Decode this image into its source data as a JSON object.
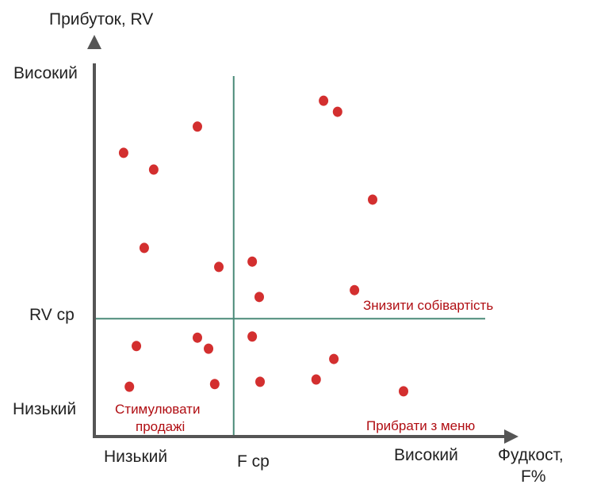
{
  "chart_data": {
    "type": "scatter",
    "title": "",
    "ylabel": "Прибуток, RV",
    "xlabel_line1": "Фудкост,",
    "xlabel_line2": "F%",
    "y_ticks": {
      "high": "Високий",
      "avg": "RV ср",
      "low": "Низький"
    },
    "x_ticks": {
      "low": "Низький",
      "avg": "F ср",
      "high": "Високий"
    },
    "xlim": [
      0,
      100
    ],
    "ylim": [
      0,
      100
    ],
    "x_avg": 33.8,
    "y_avg": 31.0,
    "quadrant_labels": {
      "reduce_cost": "Знизити собівартість",
      "stimulate_line1": "Стимулювати",
      "stimulate_line2": "продажі",
      "remove": "Прибрати з меню"
    },
    "point_color": "#d32f2f",
    "line_color": "#4a8a78",
    "axis_color": "#555555",
    "points": [
      {
        "x": 7.1,
        "y": 74.6
      },
      {
        "x": 14.4,
        "y": 70.2
      },
      {
        "x": 25.0,
        "y": 81.5
      },
      {
        "x": 55.6,
        "y": 88.3
      },
      {
        "x": 59.0,
        "y": 85.4
      },
      {
        "x": 67.5,
        "y": 62.3
      },
      {
        "x": 12.1,
        "y": 49.6
      },
      {
        "x": 30.2,
        "y": 44.6
      },
      {
        "x": 38.3,
        "y": 46.0
      },
      {
        "x": 63.1,
        "y": 38.5
      },
      {
        "x": 40.0,
        "y": 36.7
      },
      {
        "x": 10.2,
        "y": 23.8
      },
      {
        "x": 25.0,
        "y": 26.0
      },
      {
        "x": 27.7,
        "y": 23.1
      },
      {
        "x": 38.3,
        "y": 26.3
      },
      {
        "x": 58.1,
        "y": 20.4
      },
      {
        "x": 8.5,
        "y": 13.1
      },
      {
        "x": 29.2,
        "y": 13.8
      },
      {
        "x": 40.2,
        "y": 14.4
      },
      {
        "x": 53.8,
        "y": 15.0
      },
      {
        "x": 75.0,
        "y": 11.9
      }
    ]
  }
}
